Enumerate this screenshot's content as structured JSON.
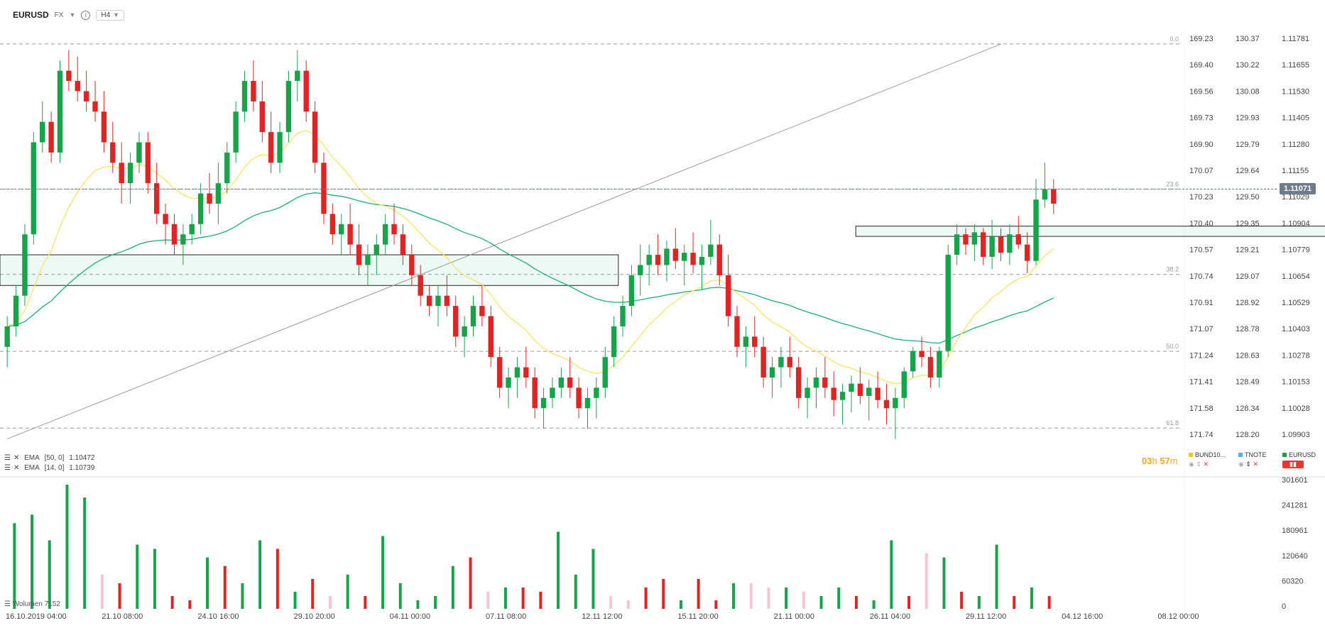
{
  "header": {
    "symbol": "EURUSD",
    "market": "FX",
    "timeframe": "H4"
  },
  "indicators": [
    {
      "label": "EMA",
      "params": "[50, 0]",
      "value": "1.10472"
    },
    {
      "label": "EMA",
      "params": "[14, 0]",
      "value": "1.10739"
    }
  ],
  "volume_label": {
    "name": "Wolumen",
    "value": "7152"
  },
  "timer": {
    "hours": "03",
    "hours_unit": "h",
    "minutes": "57",
    "minutes_unit": "m"
  },
  "instruments": [
    {
      "name": "BUND10...",
      "color": "#f5c518"
    },
    {
      "name": "TNOTE",
      "color": "#4fb3f0"
    },
    {
      "name": "EURUSD",
      "color": "#16a34a"
    }
  ],
  "current_price_badge": "1.11071",
  "colors": {
    "up": "#16a34a",
    "down": "#e02424",
    "ema14": "#f7e463",
    "ema50": "#1aae7a",
    "volume_pale": "#f9c4d2"
  },
  "chart_data": {
    "type": "candlestick",
    "price_axis_main": [
      "1.11781",
      "1.11655",
      "1.11530",
      "1.11405",
      "1.11280",
      "1.11155",
      "1.11029",
      "1.10904",
      "1.10779",
      "1.10654",
      "1.10529",
      "1.10403",
      "1.10278",
      "1.10153",
      "1.10028",
      "1.09903"
    ],
    "price_axis_bund": [
      "169.23",
      "169.40",
      "169.56",
      "169.73",
      "169.90",
      "170.07",
      "170.23",
      "170.40",
      "170.57",
      "170.74",
      "170.91",
      "171.07",
      "171.24",
      "171.41",
      "171.58",
      "171.74"
    ],
    "price_axis_tnote": [
      "130.37",
      "130.22",
      "130.08",
      "129.93",
      "129.79",
      "129.64",
      "129.50",
      "129.35",
      "129.21",
      "129.07",
      "128.92",
      "128.78",
      "128.63",
      "128.49",
      "128.34",
      "128.20"
    ],
    "ylim": [
      1.0981,
      1.1185
    ],
    "time_labels": [
      "16.10.2019 04:00",
      "21.10 08:00",
      "24.10 16:00",
      "29.10 20:00",
      "04.11 00:00",
      "07.11 08:00",
      "12.11 12:00",
      "15.11 20:00",
      "21.11 00:00",
      "26.11 04:00",
      "29.11 12:00",
      "04.12 16:00",
      "08.12 00:00"
    ],
    "fib_levels": [
      {
        "label": "0.0",
        "price": 1.11781
      },
      {
        "label": "23.6",
        "price": 1.11071
      },
      {
        "label": "38.2",
        "price": 1.10654
      },
      {
        "label": "50.0",
        "price": 1.10278
      },
      {
        "label": "61.8",
        "price": 1.09903
      }
    ],
    "current_price": 1.11071,
    "zones": [
      {
        "start_bar": 0,
        "end_bar": 69,
        "top": 1.1075,
        "bottom": 1.106
      },
      {
        "start_bar": 97,
        "end_bar": 160,
        "top": 1.1089,
        "bottom": 1.1084
      }
    ],
    "trendline": [
      {
        "bar": 0,
        "price": 1.0985
      },
      {
        "bar": 113,
        "price": 1.1178
      }
    ],
    "candles": [
      [
        1.103,
        1.1045,
        1.102,
        1.104
      ],
      [
        1.104,
        1.106,
        1.1035,
        1.1055
      ],
      [
        1.1055,
        1.109,
        1.105,
        1.1085
      ],
      [
        1.1085,
        1.1135,
        1.108,
        1.113
      ],
      [
        1.113,
        1.115,
        1.1125,
        1.114
      ],
      [
        1.114,
        1.1145,
        1.112,
        1.1125
      ],
      [
        1.1125,
        1.117,
        1.112,
        1.1165
      ],
      [
        1.1165,
        1.1175,
        1.1155,
        1.116
      ],
      [
        1.116,
        1.1172,
        1.115,
        1.1155
      ],
      [
        1.1155,
        1.1165,
        1.1145,
        1.115
      ],
      [
        1.115,
        1.116,
        1.114,
        1.1145
      ],
      [
        1.1145,
        1.1155,
        1.1125,
        1.113
      ],
      [
        1.113,
        1.114,
        1.1115,
        1.112
      ],
      [
        1.112,
        1.113,
        1.11,
        1.111
      ],
      [
        1.111,
        1.1125,
        1.11,
        1.112
      ],
      [
        1.112,
        1.1135,
        1.1115,
        1.113
      ],
      [
        1.113,
        1.1135,
        1.1105,
        1.111
      ],
      [
        1.111,
        1.112,
        1.109,
        1.1095
      ],
      [
        1.1095,
        1.11,
        1.108,
        1.109
      ],
      [
        1.109,
        1.1095,
        1.1075,
        1.108
      ],
      [
        1.108,
        1.109,
        1.107,
        1.1085
      ],
      [
        1.1085,
        1.1095,
        1.108,
        1.109
      ],
      [
        1.109,
        1.111,
        1.1085,
        1.1105
      ],
      [
        1.1105,
        1.1115,
        1.1095,
        1.11
      ],
      [
        1.11,
        1.112,
        1.109,
        1.111
      ],
      [
        1.111,
        1.113,
        1.1105,
        1.1125
      ],
      [
        1.1125,
        1.115,
        1.112,
        1.1145
      ],
      [
        1.1145,
        1.1165,
        1.114,
        1.116
      ],
      [
        1.116,
        1.117,
        1.1145,
        1.115
      ],
      [
        1.115,
        1.116,
        1.113,
        1.1135
      ],
      [
        1.1135,
        1.1145,
        1.1115,
        1.112
      ],
      [
        1.112,
        1.114,
        1.1115,
        1.1135
      ],
      [
        1.1135,
        1.1165,
        1.113,
        1.116
      ],
      [
        1.116,
        1.1175,
        1.115,
        1.1165
      ],
      [
        1.1165,
        1.117,
        1.114,
        1.1145
      ],
      [
        1.1145,
        1.115,
        1.1115,
        1.112
      ],
      [
        1.112,
        1.1125,
        1.109,
        1.1095
      ],
      [
        1.1095,
        1.11,
        1.108,
        1.1085
      ],
      [
        1.1085,
        1.1095,
        1.1075,
        1.109
      ],
      [
        1.109,
        1.11,
        1.1075,
        1.108
      ],
      [
        1.108,
        1.109,
        1.1065,
        1.107
      ],
      [
        1.107,
        1.108,
        1.106,
        1.1075
      ],
      [
        1.1075,
        1.1085,
        1.1065,
        1.108
      ],
      [
        1.108,
        1.1095,
        1.1075,
        1.109
      ],
      [
        1.109,
        1.11,
        1.108,
        1.1085
      ],
      [
        1.1085,
        1.109,
        1.107,
        1.1075
      ],
      [
        1.1075,
        1.108,
        1.106,
        1.1065
      ],
      [
        1.1065,
        1.107,
        1.105,
        1.1055
      ],
      [
        1.1055,
        1.106,
        1.1045,
        1.105
      ],
      [
        1.105,
        1.106,
        1.104,
        1.1055
      ],
      [
        1.1055,
        1.1065,
        1.1045,
        1.105
      ],
      [
        1.105,
        1.1055,
        1.103,
        1.1035
      ],
      [
        1.1035,
        1.1045,
        1.1025,
        1.104
      ],
      [
        1.104,
        1.1055,
        1.1035,
        1.105
      ],
      [
        1.105,
        1.106,
        1.104,
        1.1045
      ],
      [
        1.1045,
        1.105,
        1.102,
        1.1025
      ],
      [
        1.1025,
        1.103,
        1.1005,
        1.101
      ],
      [
        1.101,
        1.102,
        1.1,
        1.1015
      ],
      [
        1.1015,
        1.1025,
        1.1005,
        1.102
      ],
      [
        1.102,
        1.103,
        1.101,
        1.1015
      ],
      [
        1.1015,
        1.102,
        1.0995,
        1.1
      ],
      [
        1.1,
        1.101,
        1.099,
        1.1005
      ],
      [
        1.1005,
        1.1015,
        1.1,
        1.101
      ],
      [
        1.101,
        1.102,
        1.1005,
        1.1015
      ],
      [
        1.1015,
        1.1025,
        1.1005,
        1.101
      ],
      [
        1.101,
        1.1015,
        1.0995,
        1.1
      ],
      [
        1.1,
        1.101,
        1.099,
        1.1005
      ],
      [
        1.1005,
        1.1015,
        1.0995,
        1.101
      ],
      [
        1.101,
        1.103,
        1.1005,
        1.1025
      ],
      [
        1.1025,
        1.1045,
        1.102,
        1.104
      ],
      [
        1.104,
        1.1055,
        1.1035,
        1.105
      ],
      [
        1.105,
        1.107,
        1.1045,
        1.1065
      ],
      [
        1.1065,
        1.108,
        1.1055,
        1.107
      ],
      [
        1.107,
        1.108,
        1.106,
        1.1075
      ],
      [
        1.1075,
        1.1085,
        1.1065,
        1.107
      ],
      [
        1.107,
        1.1082,
        1.1062,
        1.1078
      ],
      [
        1.1078,
        1.1088,
        1.1068,
        1.1072
      ],
      [
        1.1072,
        1.108,
        1.106,
        1.1076
      ],
      [
        1.1076,
        1.1086,
        1.1066,
        1.107
      ],
      [
        1.107,
        1.108,
        1.1058,
        1.1074
      ],
      [
        1.1074,
        1.1092,
        1.107,
        1.108
      ],
      [
        1.108,
        1.1085,
        1.106,
        1.1065
      ],
      [
        1.1065,
        1.1075,
        1.104,
        1.1045
      ],
      [
        1.1045,
        1.105,
        1.1025,
        1.103
      ],
      [
        1.103,
        1.104,
        1.102,
        1.1035
      ],
      [
        1.1035,
        1.1045,
        1.1025,
        1.103
      ],
      [
        1.103,
        1.1035,
        1.101,
        1.1015
      ],
      [
        1.1015,
        1.1025,
        1.1005,
        1.102
      ],
      [
        1.102,
        1.103,
        1.101,
        1.1025
      ],
      [
        1.1025,
        1.1035,
        1.1015,
        1.102
      ],
      [
        1.102,
        1.1025,
        1.1,
        1.1005
      ],
      [
        1.1005,
        1.1015,
        1.0995,
        1.101
      ],
      [
        1.101,
        1.102,
        1.1,
        1.1015
      ],
      [
        1.1015,
        1.1025,
        1.1005,
        1.101
      ],
      [
        1.101,
        1.1018,
        1.0996,
        1.1004
      ],
      [
        1.1004,
        1.1012,
        1.0992,
        1.1008
      ],
      [
        1.1008,
        1.1016,
        1.0998,
        1.1012
      ],
      [
        1.1012,
        1.102,
        1.1002,
        1.1006
      ],
      [
        1.1006,
        1.1014,
        1.0994,
        1.101
      ],
      [
        1.101,
        1.1018,
        1.1,
        1.1004
      ],
      [
        1.1004,
        1.1012,
        1.0992,
        1.1
      ],
      [
        1.1,
        1.101,
        1.0985,
        1.1005
      ],
      [
        1.1005,
        1.102,
        1.1,
        1.1018
      ],
      [
        1.1018,
        1.103,
        1.1015,
        1.1028
      ],
      [
        1.1028,
        1.1035,
        1.102,
        1.1025
      ],
      [
        1.1025,
        1.103,
        1.101,
        1.1015
      ],
      [
        1.1015,
        1.103,
        1.101,
        1.1028
      ],
      [
        1.1028,
        1.108,
        1.1025,
        1.1075
      ],
      [
        1.1075,
        1.109,
        1.107,
        1.1085
      ],
      [
        1.1085,
        1.1088,
        1.1075,
        1.108
      ],
      [
        1.108,
        1.109,
        1.1072,
        1.1086
      ],
      [
        1.1086,
        1.1088,
        1.107,
        1.1074
      ],
      [
        1.1074,
        1.1092,
        1.1068,
        1.1084
      ],
      [
        1.1084,
        1.1088,
        1.1072,
        1.1076
      ],
      [
        1.1076,
        1.109,
        1.107,
        1.1085
      ],
      [
        1.1085,
        1.1094,
        1.1078,
        1.108
      ],
      [
        1.108,
        1.1086,
        1.1066,
        1.1072
      ],
      [
        1.1072,
        1.1112,
        1.107,
        1.1102
      ],
      [
        1.1102,
        1.112,
        1.1098,
        1.1107
      ],
      [
        1.1107,
        1.1112,
        1.1095,
        1.11
      ]
    ],
    "volume_axis": [
      "301601",
      "241281",
      "180961",
      "120640",
      "60320",
      "0"
    ],
    "volume_max": 301601,
    "volumes": [
      [
        200000,
        "up"
      ],
      [
        220000,
        "up"
      ],
      [
        160000,
        "up"
      ],
      [
        290000,
        "up"
      ],
      [
        260000,
        "up"
      ],
      [
        80000,
        "pale"
      ],
      [
        60000,
        "down"
      ],
      [
        150000,
        "up"
      ],
      [
        140000,
        "up"
      ],
      [
        30000,
        "down"
      ],
      [
        20000,
        "down"
      ],
      [
        120000,
        "up"
      ],
      [
        100000,
        "down"
      ],
      [
        60000,
        "up"
      ],
      [
        160000,
        "up"
      ],
      [
        140000,
        "down"
      ],
      [
        40000,
        "up"
      ],
      [
        70000,
        "down"
      ],
      [
        30000,
        "pale"
      ],
      [
        80000,
        "up"
      ],
      [
        30000,
        "down"
      ],
      [
        170000,
        "up"
      ],
      [
        60000,
        "up"
      ],
      [
        20000,
        "up"
      ],
      [
        30000,
        "up"
      ],
      [
        100000,
        "up"
      ],
      [
        120000,
        "down"
      ],
      [
        40000,
        "pale"
      ],
      [
        50000,
        "up"
      ],
      [
        50000,
        "down"
      ],
      [
        40000,
        "down"
      ],
      [
        180000,
        "up"
      ],
      [
        80000,
        "up"
      ],
      [
        140000,
        "up"
      ],
      [
        30000,
        "pale"
      ],
      [
        20000,
        "pale"
      ],
      [
        50000,
        "down"
      ],
      [
        70000,
        "down"
      ],
      [
        20000,
        "up"
      ],
      [
        70000,
        "down"
      ],
      [
        20000,
        "down"
      ],
      [
        60000,
        "up"
      ],
      [
        60000,
        "pale"
      ],
      [
        50000,
        "pale"
      ],
      [
        50000,
        "up"
      ],
      [
        40000,
        "pale"
      ],
      [
        30000,
        "up"
      ],
      [
        50000,
        "up"
      ],
      [
        30000,
        "down"
      ],
      [
        20000,
        "up"
      ],
      [
        160000,
        "up"
      ],
      [
        30000,
        "down"
      ],
      [
        130000,
        "pale"
      ],
      [
        120000,
        "up"
      ],
      [
        40000,
        "down"
      ],
      [
        30000,
        "up"
      ],
      [
        150000,
        "up"
      ],
      [
        30000,
        "down"
      ],
      [
        50000,
        "up"
      ],
      [
        30000,
        "down"
      ]
    ]
  }
}
